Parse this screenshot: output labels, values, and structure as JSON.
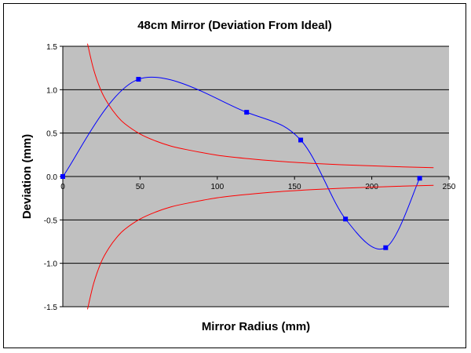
{
  "chart_data": {
    "type": "line",
    "title": "48cm Mirror (Deviation From Ideal)",
    "xlabel": "Mirror Radius (mm)",
    "ylabel": "Deviation (mm)",
    "xlim": [
      0,
      250
    ],
    "ylim": [
      -1.5,
      1.5
    ],
    "x_ticks": [
      0,
      50,
      100,
      150,
      200,
      250
    ],
    "y_ticks": [
      -1.5,
      -1.0,
      -0.5,
      0.0,
      0.5,
      1.0,
      1.5
    ],
    "x_tick_labels": [
      "0",
      "50",
      "100",
      "150",
      "200",
      "250"
    ],
    "y_tick_labels": [
      "-1.5",
      "-1.0",
      "-0.5",
      "0.0",
      "0.5",
      "1.0",
      "1.5"
    ],
    "grid": "horizontal",
    "plot_background": "#c0c0c0",
    "series": [
      {
        "color": "#0000ff",
        "marker": "square",
        "smooth": true,
        "points": [
          {
            "x": 0,
            "y": 0.0
          },
          {
            "x": 49,
            "y": 1.12
          },
          {
            "x": 119,
            "y": 0.74
          },
          {
            "x": 154,
            "y": 0.42
          },
          {
            "x": 183,
            "y": -0.49
          },
          {
            "x": 209,
            "y": -0.82
          },
          {
            "x": 231,
            "y": -0.02
          }
        ]
      },
      {
        "color": "#ff0000",
        "marker": "none",
        "points": [
          {
            "x": 16,
            "y": 1.53
          },
          {
            "x": 20,
            "y": 1.23
          },
          {
            "x": 25,
            "y": 0.98
          },
          {
            "x": 30,
            "y": 0.82
          },
          {
            "x": 35,
            "y": 0.7
          },
          {
            "x": 40,
            "y": 0.61
          },
          {
            "x": 50,
            "y": 0.49
          },
          {
            "x": 60,
            "y": 0.41
          },
          {
            "x": 70,
            "y": 0.35
          },
          {
            "x": 80,
            "y": 0.31
          },
          {
            "x": 100,
            "y": 0.245
          },
          {
            "x": 120,
            "y": 0.205
          },
          {
            "x": 140,
            "y": 0.175
          },
          {
            "x": 160,
            "y": 0.153
          },
          {
            "x": 180,
            "y": 0.136
          },
          {
            "x": 200,
            "y": 0.123
          },
          {
            "x": 220,
            "y": 0.111
          },
          {
            "x": 240,
            "y": 0.102
          }
        ]
      },
      {
        "color": "#ff0000",
        "marker": "none",
        "points": [
          {
            "x": 16,
            "y": -1.53
          },
          {
            "x": 20,
            "y": -1.23
          },
          {
            "x": 25,
            "y": -0.98
          },
          {
            "x": 30,
            "y": -0.82
          },
          {
            "x": 35,
            "y": -0.7
          },
          {
            "x": 40,
            "y": -0.61
          },
          {
            "x": 50,
            "y": -0.49
          },
          {
            "x": 60,
            "y": -0.41
          },
          {
            "x": 70,
            "y": -0.35
          },
          {
            "x": 80,
            "y": -0.31
          },
          {
            "x": 100,
            "y": -0.245
          },
          {
            "x": 120,
            "y": -0.205
          },
          {
            "x": 140,
            "y": -0.175
          },
          {
            "x": 160,
            "y": -0.153
          },
          {
            "x": 180,
            "y": -0.136
          },
          {
            "x": 200,
            "y": -0.123
          },
          {
            "x": 220,
            "y": -0.111
          },
          {
            "x": 240,
            "y": -0.102
          }
        ]
      }
    ]
  }
}
